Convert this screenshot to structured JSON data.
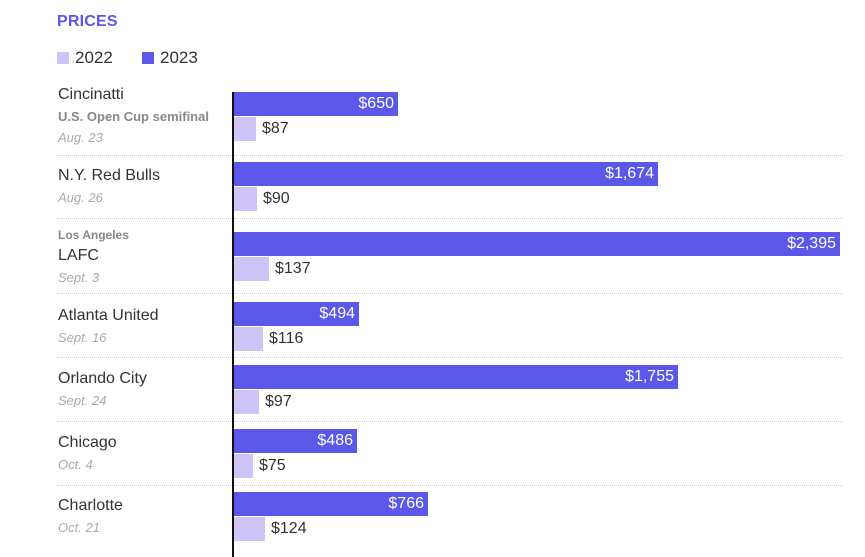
{
  "header": {
    "title": "PRICES"
  },
  "legend": [
    {
      "label": "2022",
      "color": "#cfc4f7"
    },
    {
      "label": "2023",
      "color": "#5b57e8"
    }
  ],
  "chart_data": {
    "type": "bar",
    "orientation": "horizontal",
    "title": "PRICES",
    "xlim": [
      0,
      2395
    ],
    "series": [
      {
        "name": "2023",
        "color": "#5b57e8",
        "values": [
          650,
          1674,
          2395,
          494,
          1755,
          486,
          766
        ]
      },
      {
        "name": "2022",
        "color": "#cfc4f7",
        "values": [
          87,
          90,
          137,
          116,
          97,
          75,
          124
        ]
      }
    ],
    "rows": [
      {
        "team": "Cincinatti",
        "pre": "",
        "note": "U.S. Open Cup semifinal",
        "date": "Aug. 23",
        "v2023": "$650",
        "v2022": "$87"
      },
      {
        "team": "N.Y. Red Bulls",
        "pre": "",
        "note": "",
        "date": "Aug. 26",
        "v2023": "$1,674",
        "v2022": "$90"
      },
      {
        "team": "LAFC",
        "pre": "Los Angeles",
        "note": "",
        "date": "Sept. 3",
        "v2023": "$2,395",
        "v2022": "$137"
      },
      {
        "team": "Atlanta United",
        "pre": "",
        "note": "",
        "date": "Sept. 16",
        "v2023": "$494",
        "v2022": "$116"
      },
      {
        "team": "Orlando City",
        "pre": "",
        "note": "",
        "date": "Sept. 24",
        "v2023": "$1,755",
        "v2022": "$97"
      },
      {
        "team": "Chicago",
        "pre": "",
        "note": "",
        "date": "Oct. 4",
        "v2023": "$486",
        "v2022": "$75"
      },
      {
        "team": "Charlotte",
        "pre": "",
        "note": "",
        "date": "Oct. 21",
        "v2023": "$766",
        "v2022": "$124"
      }
    ]
  }
}
